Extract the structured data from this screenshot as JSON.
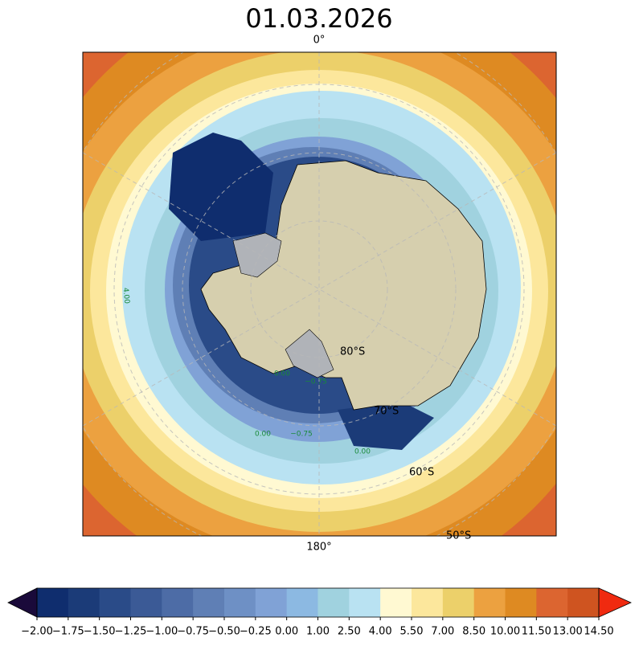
{
  "title": "01.03.2026",
  "map": {
    "meridian_labels": [
      "0°",
      "180°"
    ],
    "latitude_labels": [
      "80°S",
      "70°S",
      "60°S",
      "50°S"
    ],
    "contour_labels": [
      "4.00",
      "0.00",
      "−0.75",
      "0.00",
      "−0.75",
      "0.00"
    ]
  },
  "colorbar": {
    "ticks": [
      {
        "value": -2.0,
        "label": "−2.00"
      },
      {
        "value": -1.75,
        "label": "−1.75"
      },
      {
        "value": -1.5,
        "label": "−1.50"
      },
      {
        "value": -1.25,
        "label": "−1.25"
      },
      {
        "value": -1.0,
        "label": "−1.00"
      },
      {
        "value": -0.75,
        "label": "−0.75"
      },
      {
        "value": -0.5,
        "label": "−0.50"
      },
      {
        "value": -0.25,
        "label": "−0.25"
      },
      {
        "value": 0,
        "label": "0.00"
      },
      {
        "value": 1,
        "label": "1.00"
      },
      {
        "value": 2.5,
        "label": "2.50"
      },
      {
        "value": 4,
        "label": "4.00"
      },
      {
        "value": 5.5,
        "label": "5.50"
      },
      {
        "value": 7,
        "label": "7.00"
      },
      {
        "value": 8.5,
        "label": "8.50"
      },
      {
        "value": 10,
        "label": "10.00"
      },
      {
        "value": 11.5,
        "label": "11.50"
      },
      {
        "value": 13,
        "label": "13.00"
      },
      {
        "value": 14.5,
        "label": "14.50"
      }
    ],
    "colors": [
      "#0f2d6e",
      "#1b3b78",
      "#2a4b88",
      "#3b5a96",
      "#4d6ca6",
      "#5f7fb5",
      "#6e90c5",
      "#80a2d6",
      "#8cb9e2",
      "#a0d2df",
      "#b9e2f2",
      "#fff9d2",
      "#fce79c",
      "#ecd06a",
      "#eca140",
      "#de8a22",
      "#dc6530",
      "#cf5420"
    ],
    "under_color": "#1a0a3a",
    "over_color": "#f02a10"
  }
}
